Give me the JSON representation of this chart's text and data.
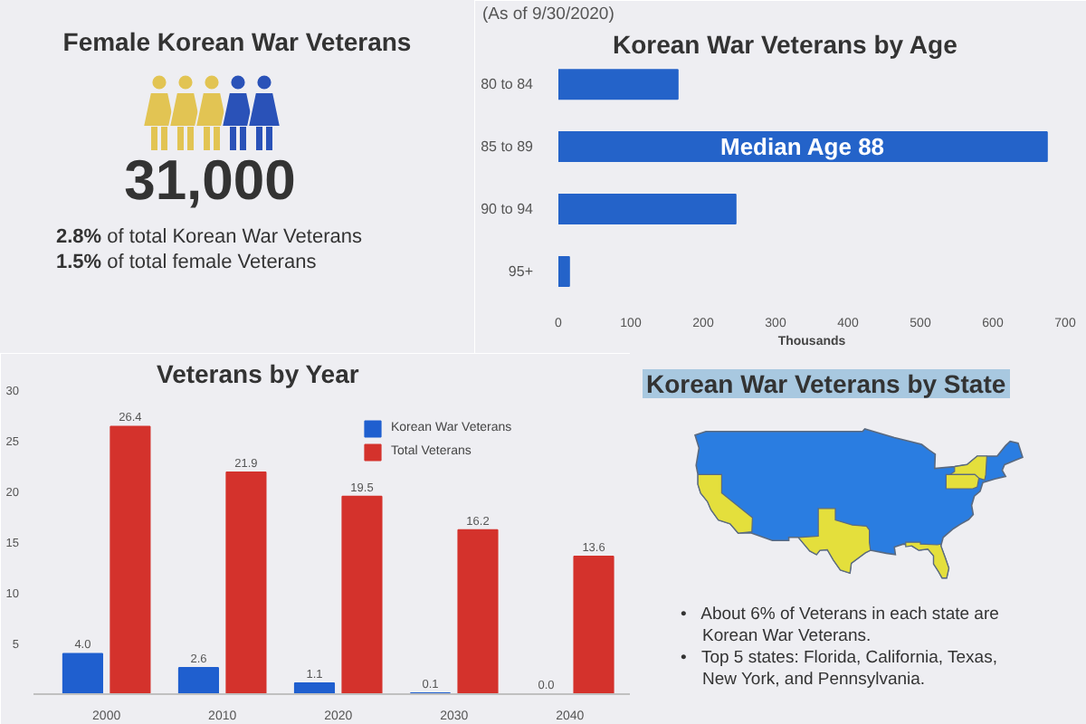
{
  "chart_data": [
    {
      "type": "other",
      "title": "Female Korean War Veterans",
      "annotations": [
        "31,000",
        "2.8% of total Korean War Veterans",
        "1.5% of total female Veterans"
      ]
    },
    {
      "type": "bar",
      "orientation": "horizontal",
      "title": "Korean War Veterans by Age",
      "subtitle": "(As of 9/30/2020)",
      "xlabel": "Thousands",
      "categories": [
        "80 to 84",
        "85 to 89",
        "90 to 94",
        "95+"
      ],
      "values": [
        165,
        675,
        245,
        15
      ],
      "color": "#2463c9",
      "xlim": [
        0,
        700
      ],
      "xticks": [
        0,
        100,
        200,
        300,
        400,
        500,
        600,
        700
      ],
      "annotations": [
        "Median Age 88"
      ]
    },
    {
      "type": "bar",
      "title": "Veterans by Year",
      "categories": [
        "2000",
        "2010",
        "2020",
        "2030",
        "2040"
      ],
      "series": [
        {
          "name": "Korean War Veterans",
          "color": "#1f5fcf",
          "values": [
            4.0,
            2.6,
            1.1,
            0.1,
            0.0
          ],
          "value_labels": [
            "4.0",
            "2.6",
            "1.1",
            "0.1",
            "0.0"
          ]
        },
        {
          "name": "Total Veterans",
          "color": "#d4322c",
          "values": [
            26.4,
            21.9,
            19.5,
            16.2,
            13.6
          ],
          "value_labels": [
            "26.4",
            "21.9",
            "19.5",
            "16.2",
            "13.6"
          ]
        }
      ],
      "ylim": [
        0,
        30
      ],
      "yticks": [
        5,
        10,
        15,
        20,
        25,
        30
      ],
      "legend": "top right"
    },
    {
      "type": "other",
      "title": "Korean War Veterans by State",
      "annotations": [
        "• About 6% of Veterans in each state are Korean War Veterans.",
        "• Top 5 states: Florida, California, Texas, New York, and Pennsylvania."
      ]
    }
  ]
}
